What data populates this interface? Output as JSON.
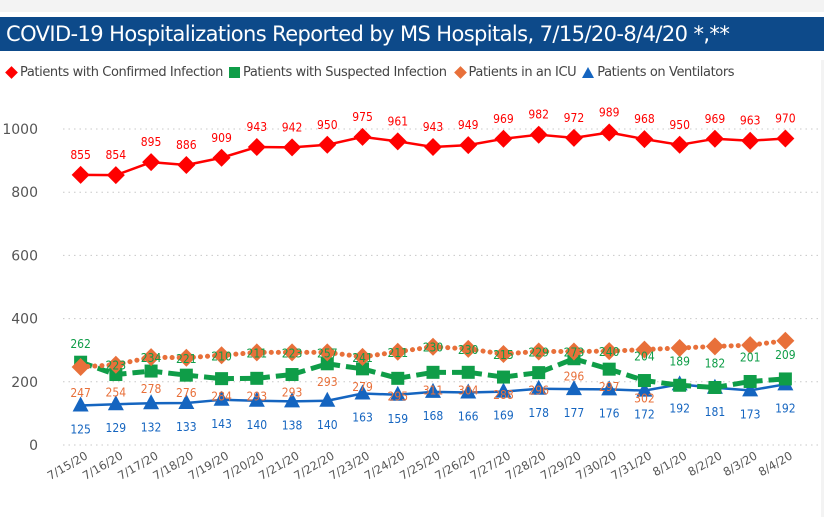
{
  "title": "COVID-19 Hospitalizations Reported by MS Hospitals, 7/15/20-8/4/20 *,**",
  "chart_data": {
    "type": "line",
    "title": "COVID-19 Hospitalizations Reported by MS Hospitals, 7/15/20-8/4/20 *,**",
    "xlabel": "",
    "ylabel": "",
    "ylim": [
      0,
      1000
    ],
    "yticks": [
      0,
      200,
      400,
      600,
      800,
      1000
    ],
    "ytick_labels": [
      "0",
      "200",
      "400",
      "600",
      "800",
      "1000"
    ],
    "grid": "horizontal-dotted",
    "legend_position": "top-left",
    "categories": [
      "7/15/20",
      "7/16/20",
      "7/17/20",
      "7/18/20",
      "7/19/20",
      "7/20/20",
      "7/21/20",
      "7/22/20",
      "7/23/20",
      "7/24/20",
      "7/25/20",
      "7/26/20",
      "7/27/20",
      "7/28/20",
      "7/29/20",
      "7/30/20",
      "7/31/20",
      "8/1/20",
      "8/2/20",
      "8/3/20",
      "8/4/20"
    ],
    "series": [
      {
        "name": "Patients with Confirmed Infection",
        "color": "#ff0000",
        "marker": "diamond",
        "line_style": "solid",
        "label_position": "above",
        "values": [
          855,
          854,
          895,
          886,
          909,
          943,
          942,
          950,
          975,
          961,
          943,
          949,
          969,
          982,
          972,
          989,
          968,
          950,
          969,
          963,
          970
        ],
        "labels_shown": [
          true,
          true,
          true,
          true,
          true,
          true,
          true,
          true,
          true,
          true,
          true,
          true,
          true,
          true,
          true,
          true,
          true,
          true,
          true,
          true,
          true
        ]
      },
      {
        "name": "Patients with Suspected Infection",
        "color": "#0f9d48",
        "marker": "square",
        "line_style": "dashed",
        "label_position": "above",
        "values": [
          262,
          223,
          234,
          221,
          210,
          211,
          223,
          257,
          241,
          211,
          230,
          230,
          215,
          229,
          273,
          240,
          204,
          189,
          182,
          201,
          209
        ],
        "labels_shown": [
          true,
          true,
          true,
          true,
          true,
          true,
          true,
          true,
          true,
          true,
          true,
          true,
          true,
          true,
          true,
          true,
          true,
          true,
          true,
          true,
          true
        ]
      },
      {
        "name": "Patients in an ICU",
        "color": "#e8703a",
        "marker": "diamond",
        "line_style": "dotted",
        "label_position": "below",
        "values": [
          247,
          254,
          278,
          276,
          284,
          293,
          293,
          293,
          279,
          295,
          311,
          304,
          288,
          296,
          296,
          297,
          302,
          307,
          312,
          316,
          330
        ],
        "labels_shown": [
          true,
          true,
          true,
          true,
          true,
          true,
          true,
          true,
          true,
          true,
          true,
          true,
          true,
          true,
          true,
          true,
          true,
          false,
          false,
          false,
          false
        ]
      },
      {
        "name": "Patients on Ventilators",
        "color": "#1565c0",
        "marker": "triangle",
        "line_style": "solid",
        "label_position": "below",
        "values": [
          125,
          129,
          132,
          133,
          143,
          140,
          138,
          140,
          163,
          159,
          168,
          166,
          169,
          178,
          177,
          176,
          172,
          192,
          181,
          173,
          192
        ],
        "labels_shown": [
          true,
          true,
          true,
          true,
          true,
          true,
          true,
          true,
          true,
          true,
          true,
          true,
          true,
          true,
          true,
          true,
          true,
          true,
          true,
          true,
          true
        ]
      }
    ]
  }
}
